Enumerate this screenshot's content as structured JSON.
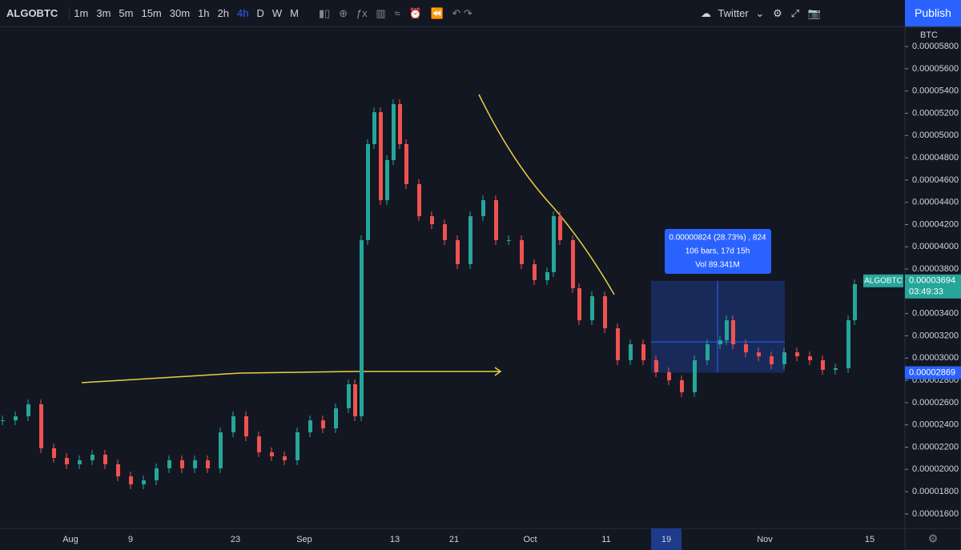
{
  "toolbar": {
    "symbol": "ALGOBTC",
    "intervals": [
      "1m",
      "3m",
      "5m",
      "15m",
      "30m",
      "1h",
      "2h",
      "4h",
      "D",
      "W",
      "M"
    ],
    "share": "Twitter",
    "publish": "Publish"
  },
  "price_axis": {
    "unit": "BTC",
    "range": [
      5.973e-05,
      1.47e-05
    ],
    "ticks": [
      {
        "value": 5.8e-05,
        "label": "0.00005800"
      },
      {
        "value": 5.6e-05,
        "label": "0.00005600"
      },
      {
        "value": 5.4e-05,
        "label": "0.00005400"
      },
      {
        "value": 5.2e-05,
        "label": "0.00005200"
      },
      {
        "value": 5e-05,
        "label": "0.00005000"
      },
      {
        "value": 4.8e-05,
        "label": "0.00004800"
      },
      {
        "value": 4.6e-05,
        "label": "0.00004600"
      },
      {
        "value": 4.4e-05,
        "label": "0.00004400"
      },
      {
        "value": 4.2e-05,
        "label": "0.00004200"
      },
      {
        "value": 4e-05,
        "label": "0.00004000"
      },
      {
        "value": 3.8e-05,
        "label": "0.00003800"
      },
      {
        "value": 3.6e-05,
        "label": "0.00003600"
      },
      {
        "value": 3.4e-05,
        "label": "0.00003400"
      },
      {
        "value": 3.2e-05,
        "label": "0.00003200"
      },
      {
        "value": 3e-05,
        "label": "0.00003000"
      },
      {
        "value": 2.8e-05,
        "label": "0.00002800"
      },
      {
        "value": 2.6e-05,
        "label": "0.00002600"
      },
      {
        "value": 2.4e-05,
        "label": "0.00002400"
      },
      {
        "value": 2.2e-05,
        "label": "0.00002200"
      },
      {
        "value": 2e-05,
        "label": "0.00002000"
      },
      {
        "value": 1.8e-05,
        "label": "0.00001800"
      },
      {
        "value": 1.6e-05,
        "label": "0.00001600"
      }
    ]
  },
  "last_price": {
    "symbol": "ALGOBTC",
    "price": {
      "value": 3.694e-05,
      "label": "0.00003694"
    },
    "countdown": "03:49:33"
  },
  "measure": {
    "low": {
      "value": 2.869e-05,
      "label": "0.00002869"
    },
    "lines": [
      "0.00000824 (28.73%) , 824",
      "106 bars, 17d 15h",
      "Vol 89.341M"
    ]
  },
  "time_axis": [
    "Aug",
    "9",
    "23",
    "Sep",
    "13",
    "21",
    "Oct",
    "11",
    "19",
    "Nov",
    "15"
  ],
  "closes": [
    2.441e-05,
    2.477e-05,
    2.585e-05,
    2.19e-05,
    2.103e-05,
    2.046e-05,
    2.082e-05,
    2.132e-05,
    2.046e-05,
    1.938e-05,
    1.866e-05,
    1.902e-05,
    2.01e-05,
    2.082e-05,
    2.01e-05,
    2.082e-05,
    2.01e-05,
    2.333e-05,
    2.477e-05,
    2.297e-05,
    2.154e-05,
    2.118e-05,
    2.082e-05,
    2.333e-05,
    2.441e-05,
    2.369e-05,
    2.549e-05,
    2.765e-05,
    2.477e-05,
    4.06e-05,
    4.923e-05,
    5.21e-05,
    4.419e-05,
    4.779e-05,
    5.282e-05,
    4.923e-05,
    4.563e-05,
    4.275e-05,
    4.203e-05,
    4.06e-05,
    3.844e-05,
    4.275e-05,
    4.419e-05,
    4.06e-05,
    4.06e-05,
    3.844e-05,
    3.7e-05,
    3.772e-05,
    4.275e-05,
    4.06e-05,
    3.628e-05,
    3.34e-05,
    3.556e-05,
    3.268e-05,
    2.981e-05,
    3.124e-05,
    2.981e-05,
    2.873e-05,
    2.801e-05,
    2.693e-05,
    2.981e-05,
    3.124e-05,
    3.16e-05,
    3.34e-05,
    3.124e-05,
    3.052e-05,
    3.016e-05,
    2.945e-05,
    3.052e-05,
    3.016e-05,
    2.981e-05,
    2.894e-05,
    2.909e-05,
    3.34e-05,
    3.664e-05
  ]
}
